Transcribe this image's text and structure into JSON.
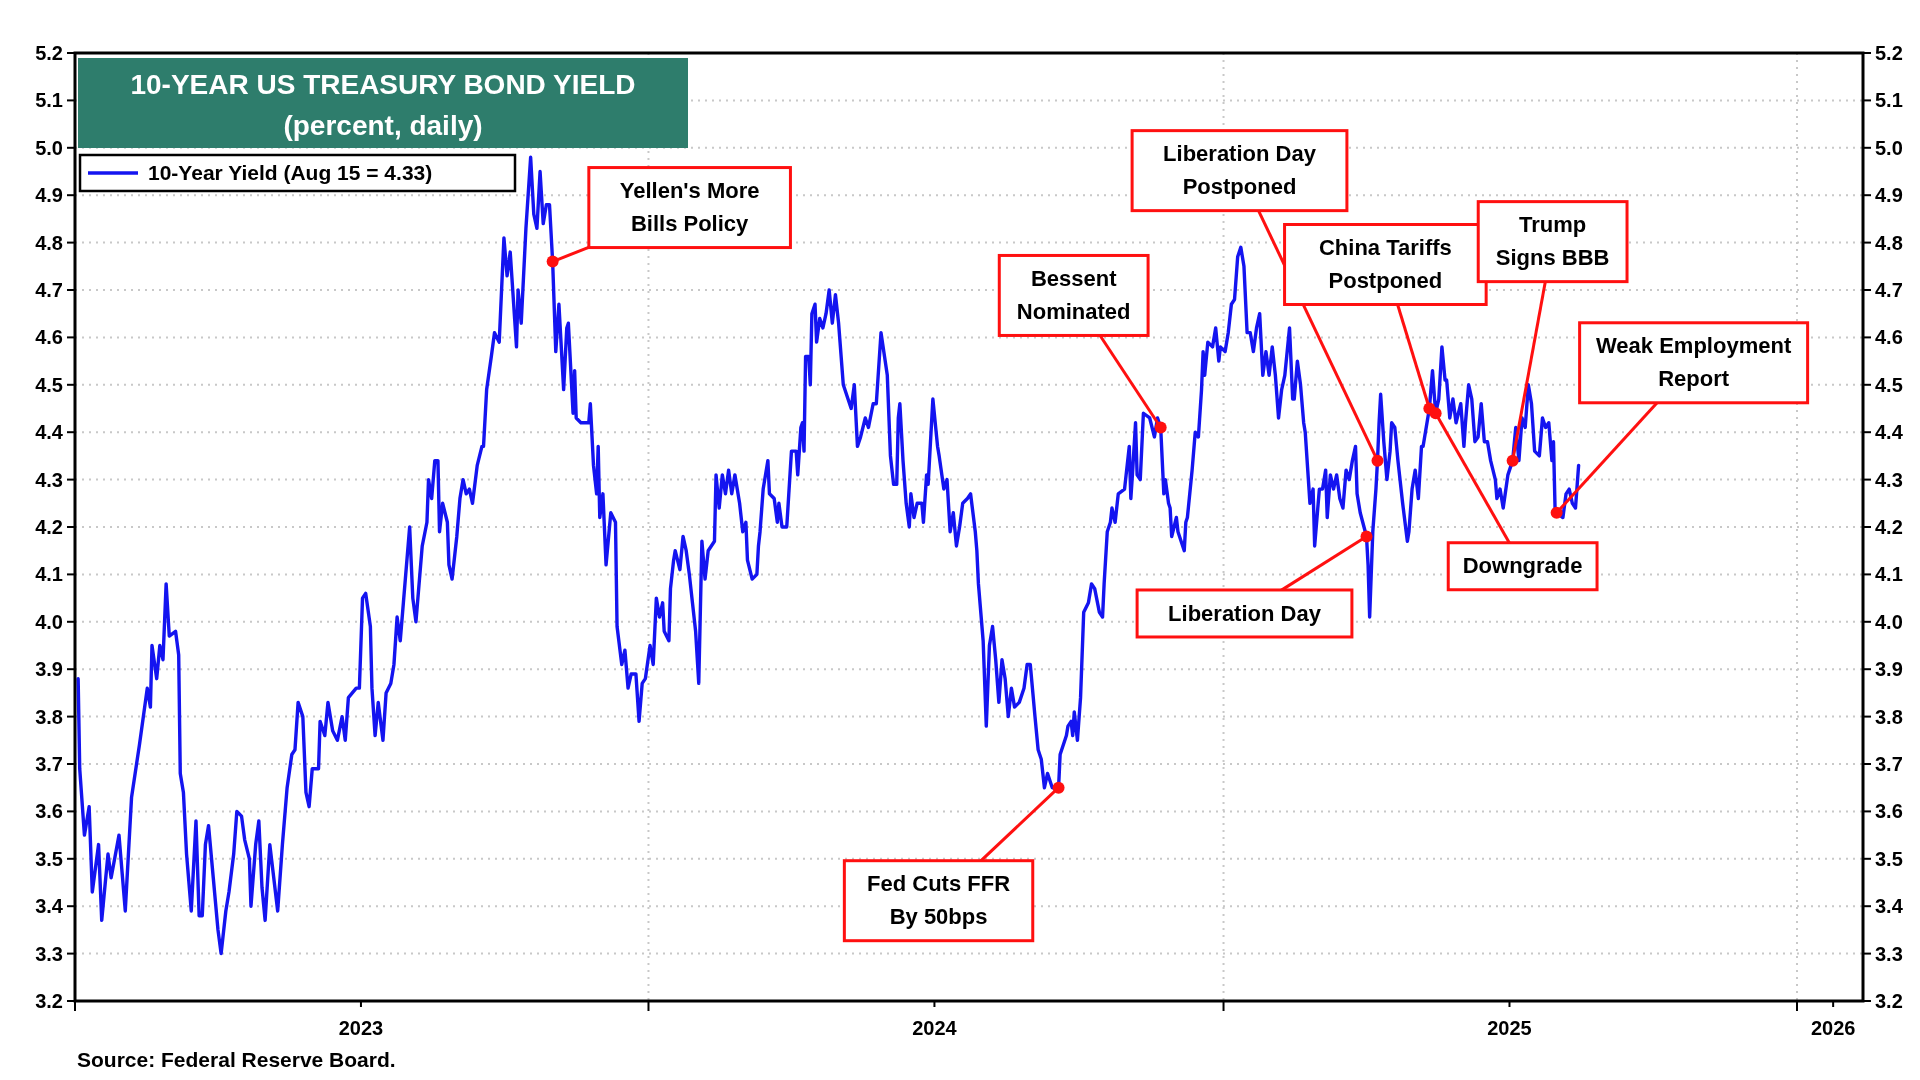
{
  "chart_data": {
    "type": "line",
    "title": "10-YEAR US TREASURY BOND YIELD",
    "subtitle": "(percent, daily)",
    "xlim": [
      "2023-01-01",
      "2026-02-12"
    ],
    "xticks": [
      {
        "value": "2023-01-01",
        "label": null
      },
      {
        "value": "2023-07-02",
        "label": "2023"
      },
      {
        "value": "2024-01-01",
        "label": null
      },
      {
        "value": "2024-07-01",
        "label": "2024"
      },
      {
        "value": "2025-01-01",
        "label": null
      },
      {
        "value": "2025-07-02",
        "label": "2025"
      },
      {
        "value": "2026-01-01",
        "label": null
      },
      {
        "value": "2026-01-24",
        "label": "2026"
      }
    ],
    "ylim": [
      3.2,
      5.2
    ],
    "yticks": [
      3.2,
      3.3,
      3.4,
      3.5,
      3.6,
      3.7,
      3.8,
      3.9,
      {
        "value": 4,
        "label": "4.0"
      },
      4.1,
      4.2,
      4.3,
      4.4,
      4.5,
      4.6,
      4.7,
      4.8,
      4.9,
      {
        "value": 5,
        "label": "5.0"
      },
      5.1,
      5.2
    ],
    "y2lim": [
      3.2,
      5.2
    ],
    "y2ticks": [
      3.2,
      3.3,
      3.4,
      3.5,
      3.6,
      3.7,
      3.8,
      3.9,
      {
        "value": 4,
        "label": "4.0"
      },
      4.1,
      4.2,
      4.3,
      4.4,
      4.5,
      4.6,
      4.7,
      4.8,
      4.9,
      {
        "value": 5,
        "label": "5.0"
      },
      5.1,
      5.2
    ],
    "grid": true,
    "legend": "top left",
    "marker": "none",
    "line_style": "solid",
    "x": [
      "2023-01-03",
      "2023-01-04",
      "2023-01-07",
      "2023-01-10",
      "2023-01-12",
      "2023-01-16",
      "2023-01-18",
      "2023-01-22",
      "2023-01-24",
      "2023-01-29",
      "2023-02-02",
      "2023-02-06",
      "2023-02-11",
      "2023-02-16",
      "2023-02-18",
      "2023-02-19",
      "2023-02-22",
      "2023-02-24",
      "2023-02-26",
      "2023-02-28",
      "2023-03-02",
      "2023-03-06",
      "2023-03-08",
      "2023-03-09",
      "2023-03-11",
      "2023-03-13",
      "2023-03-16",
      "2023-03-19",
      "2023-03-21",
      "2023-03-23",
      "2023-03-25",
      "2023-03-27",
      "2023-03-30",
      "2023-04-02",
      "2023-04-04",
      "2023-04-07",
      "2023-04-09",
      "2023-04-12",
      "2023-04-14",
      "2023-04-17",
      "2023-04-19",
      "2023-04-22",
      "2023-04-23",
      "2023-04-26",
      "2023-04-28",
      "2023-04-30",
      "2023-05-02",
      "2023-05-05",
      "2023-05-10",
      "2023-05-13",
      "2023-05-16",
      "2023-05-19",
      "2023-05-21",
      "2023-05-23",
      "2023-05-26",
      "2023-05-28",
      "2023-05-30",
      "2023-06-01",
      "2023-06-05",
      "2023-06-06",
      "2023-06-09",
      "2023-06-11",
      "2023-06-14",
      "2023-06-17",
      "2023-06-20",
      "2023-06-22",
      "2023-06-24",
      "2023-06-29",
      "2023-07-01",
      "2023-07-03",
      "2023-07-05",
      "2023-07-08",
      "2023-07-09",
      "2023-07-11",
      "2023-07-13",
      "2023-07-16",
      "2023-07-18",
      "2023-07-21",
      "2023-07-23",
      "2023-07-25",
      "2023-07-27",
      "2023-07-29",
      "2023-08-02",
      "2023-08-04",
      "2023-08-06",
      "2023-08-10",
      "2023-08-13",
      "2023-08-14",
      "2023-08-16",
      "2023-08-18",
      "2023-08-20",
      "2023-08-21",
      "2023-08-23",
      "2023-08-26",
      "2023-08-27",
      "2023-08-29",
      "2023-09-01",
      "2023-09-03",
      "2023-09-05",
      "2023-09-07",
      "2023-09-09",
      "2023-09-11",
      "2023-09-14",
      "2023-09-17",
      "2023-09-18",
      "2023-09-20",
      "2023-09-23",
      "2023-09-25",
      "2023-09-28",
      "2023-10-01",
      "2023-10-03",
      "2023-10-05",
      "2023-10-09",
      "2023-10-10",
      "2023-10-12",
      "2023-10-15",
      "2023-10-18",
      "2023-10-20",
      "2023-10-22",
      "2023-10-24",
      "2023-10-26",
      "2023-10-28",
      "2023-10-30",
      "2023-11-01",
      "2023-11-03",
      "2023-11-05",
      "2023-11-08",
      "2023-11-10",
      "2023-11-11",
      "2023-11-14",
      "2023-11-15",
      "2023-11-16",
      "2023-11-19",
      "2023-11-24",
      "2023-11-25",
      "2023-11-27",
      "2023-11-29",
      "2023-11-30",
      "2023-12-01",
      "2023-12-03",
      "2023-12-05",
      "2023-12-08",
      "2023-12-11",
      "2023-12-12",
      "2023-12-15",
      "2023-12-17",
      "2023-12-19",
      "2023-12-21",
      "2023-12-24",
      "2023-12-26",
      "2023-12-28",
      "2023-12-30",
      "2024-01-02",
      "2024-01-04",
      "2024-01-06",
      "2024-01-08",
      "2024-01-10",
      "2024-01-11",
      "2024-01-14",
      "2024-01-15",
      "2024-01-17",
      "2024-01-18",
      "2024-01-21",
      "2024-01-23",
      "2024-01-25",
      "2024-01-27",
      "2024-01-29",
      "2024-01-31",
      "2024-02-02",
      "2024-02-04",
      "2024-02-06",
      "2024-02-08",
      "2024-02-12",
      "2024-02-13",
      "2024-02-15",
      "2024-02-17",
      "2024-02-19",
      "2024-02-21",
      "2024-02-23",
      "2024-02-25",
      "2024-02-28",
      "2024-03-01",
      "2024-03-03",
      "2024-03-04",
      "2024-03-07",
      "2024-03-10",
      "2024-03-11",
      "2024-03-12",
      "2024-03-14",
      "2024-03-17",
      "2024-03-18",
      "2024-03-21",
      "2024-03-23",
      "2024-03-24",
      "2024-03-26",
      "2024-03-29",
      "2024-04-01",
      "2024-04-04",
      "2024-04-05",
      "2024-04-07",
      "2024-04-08",
      "2024-04-09",
      "2024-04-10",
      "2024-04-12",
      "2024-04-13",
      "2024-04-14",
      "2024-04-16",
      "2024-04-17",
      "2024-04-19",
      "2024-04-21",
      "2024-04-23",
      "2024-04-25",
      "2024-04-27",
      "2024-04-29",
      "2024-05-01",
      "2024-05-04",
      "2024-05-07",
      "2024-05-09",
      "2024-05-11",
      "2024-05-13",
      "2024-05-15",
      "2024-05-18",
      "2024-05-20",
      "2024-05-23",
      "2024-05-25",
      "2024-05-28",
      "2024-06-01",
      "2024-06-03",
      "2024-06-05",
      "2024-06-07",
      "2024-06-08",
      "2024-06-09",
      "2024-06-11",
      "2024-06-13",
      "2024-06-15",
      "2024-06-16",
      "2024-06-18",
      "2024-06-20",
      "2024-06-23",
      "2024-06-24",
      "2024-06-26",
      "2024-06-27",
      "2024-06-30",
      "2024-07-03",
      "2024-07-04",
      "2024-07-07",
      "2024-07-09",
      "2024-07-11",
      "2024-07-13",
      "2024-07-15",
      "2024-07-17",
      "2024-07-19",
      "2024-07-22",
      "2024-07-24",
      "2024-07-27",
      "2024-07-28",
      "2024-07-29",
      "2024-08-01",
      "2024-08-03",
      "2024-08-05",
      "2024-08-07",
      "2024-08-09",
      "2024-08-11",
      "2024-08-13",
      "2024-08-15",
      "2024-08-17",
      "2024-08-19",
      "2024-08-21",
      "2024-08-24",
      "2024-08-27",
      "2024-08-29",
      "2024-08-31",
      "2024-09-03",
      "2024-09-05",
      "2024-09-07",
      "2024-09-09",
      "2024-09-11",
      "2024-09-14",
      "2024-09-18",
      "2024-09-19",
      "2024-09-21",
      "2024-09-23",
      "2024-09-24",
      "2024-09-26",
      "2024-09-27",
      "2024-09-28",
      "2024-09-30",
      "2024-10-02",
      "2024-10-04",
      "2024-10-07",
      "2024-10-09",
      "2024-10-11",
      "2024-10-14",
      "2024-10-16",
      "2024-10-17",
      "2024-10-19",
      "2024-10-21",
      "2024-10-22",
      "2024-10-24",
      "2024-10-26",
      "2024-10-30",
      "2024-11-02",
      "2024-11-03",
      "2024-11-04",
      "2024-11-06",
      "2024-11-07",
      "2024-11-09",
      "2024-11-11",
      "2024-11-15",
      "2024-11-18",
      "2024-11-20",
      "2024-11-22",
      "2024-11-24",
      "2024-11-25",
      "2024-11-27",
      "2024-11-28",
      "2024-11-29",
      "2024-12-02",
      "2024-12-03",
      "2024-12-07",
      "2024-12-08",
      "2024-12-09",
      "2024-12-12",
      "2024-12-14",
      "2024-12-16",
      "2024-12-18",
      "2024-12-19",
      "2024-12-20",
      "2024-12-22",
      "2024-12-25",
      "2024-12-27",
      "2024-12-29",
      "2024-12-30",
      "2025-01-02",
      "2025-01-04",
      "2025-01-06",
      "2025-01-08",
      "2025-01-10",
      "2025-01-12",
      "2025-01-14",
      "2025-01-16",
      "2025-01-18",
      "2025-01-20",
      "2025-01-22",
      "2025-01-24",
      "2025-01-26",
      "2025-01-28",
      "2025-01-30",
      "2025-02-01",
      "2025-02-03",
      "2025-02-05",
      "2025-02-07",
      "2025-02-09",
      "2025-02-12",
      "2025-02-14",
      "2025-02-15",
      "2025-02-17",
      "2025-02-19",
      "2025-02-21",
      "2025-02-22",
      "2025-02-24",
      "2025-02-25",
      "2025-02-27",
      "2025-02-28",
      "2025-03-03",
      "2025-03-05",
      "2025-03-07",
      "2025-03-08",
      "2025-03-10",
      "2025-03-12",
      "2025-03-14",
      "2025-03-16",
      "2025-03-18",
      "2025-03-20",
      "2025-03-22",
      "2025-03-24",
      "2025-03-26",
      "2025-03-27",
      "2025-03-29",
      "2025-04-02",
      "2025-04-03",
      "2025-04-04",
      "2025-04-06",
      "2025-04-08",
      "2025-04-09",
      "2025-04-10",
      "2025-04-11",
      "2025-04-13",
      "2025-04-15",
      "2025-04-17",
      "2025-04-18",
      "2025-04-20",
      "2025-04-22",
      "2025-04-25",
      "2025-04-28",
      "2025-04-29",
      "2025-05-01",
      "2025-05-03",
      "2025-05-05",
      "2025-05-07",
      "2025-05-08",
      "2025-05-12",
      "2025-05-14",
      "2025-05-16",
      "2025-05-18",
      "2025-05-20",
      "2025-05-22",
      "2025-05-23",
      "2025-05-25",
      "2025-05-27",
      "2025-05-29",
      "2025-06-01",
      "2025-06-03",
      "2025-06-04",
      "2025-06-06",
      "2025-06-08",
      "2025-06-10",
      "2025-06-12",
      "2025-06-14",
      "2025-06-16",
      "2025-06-18",
      "2025-06-20",
      "2025-06-23",
      "2025-06-24",
      "2025-06-26",
      "2025-06-28",
      "2025-07-01",
      "2025-07-04",
      "2025-07-06",
      "2025-07-08",
      "2025-07-10",
      "2025-07-12",
      "2025-07-14",
      "2025-07-16",
      "2025-07-18",
      "2025-07-21",
      "2025-07-23",
      "2025-07-25",
      "2025-07-27",
      "2025-07-29",
      "2025-07-30",
      "2025-07-31",
      "2025-08-01",
      "2025-08-05",
      "2025-08-07",
      "2025-08-09",
      "2025-08-11",
      "2025-08-13",
      "2025-08-15"
    ],
    "series": [
      {
        "name": "10-Year Yield (Aug 15 = 4.33)",
        "color": "#1414f0",
        "values": [
          3.88,
          3.69,
          3.55,
          3.61,
          3.43,
          3.53,
          3.37,
          3.51,
          3.46,
          3.55,
          3.39,
          3.63,
          3.74,
          3.86,
          3.82,
          3.95,
          3.88,
          3.95,
          3.92,
          4.08,
          3.97,
          3.98,
          3.93,
          3.68,
          3.64,
          3.51,
          3.39,
          3.58,
          3.38,
          3.38,
          3.53,
          3.57,
          3.46,
          3.35,
          3.3,
          3.39,
          3.43,
          3.51,
          3.6,
          3.59,
          3.54,
          3.5,
          3.4,
          3.53,
          3.58,
          3.44,
          3.37,
          3.53,
          3.39,
          3.53,
          3.65,
          3.72,
          3.73,
          3.83,
          3.8,
          3.64,
          3.61,
          3.69,
          3.69,
          3.79,
          3.76,
          3.83,
          3.77,
          3.75,
          3.8,
          3.75,
          3.84,
          3.86,
          3.86,
          4.05,
          4.06,
          3.99,
          3.86,
          3.76,
          3.83,
          3.75,
          3.85,
          3.87,
          3.91,
          4.01,
          3.96,
          4.04,
          4.2,
          4.05,
          4.0,
          4.16,
          4.21,
          4.3,
          4.26,
          4.34,
          4.34,
          4.19,
          4.25,
          4.21,
          4.12,
          4.09,
          4.18,
          4.26,
          4.3,
          4.27,
          4.28,
          4.25,
          4.33,
          4.37,
          4.37,
          4.49,
          4.56,
          4.61,
          4.59,
          4.81,
          4.73,
          4.78,
          4.58,
          4.7,
          4.63,
          4.83,
          4.98,
          4.86,
          4.83,
          4.95,
          4.84,
          4.88,
          4.88,
          4.76,
          4.57,
          4.67,
          4.49,
          4.62,
          4.63,
          4.44,
          4.53,
          4.43,
          4.42,
          4.42,
          4.46,
          4.33,
          4.27,
          4.37,
          4.22,
          4.27,
          4.12,
          4.23,
          4.21,
          3.99,
          3.91,
          3.94,
          3.86,
          3.89,
          3.89,
          3.79,
          3.87,
          3.88,
          3.95,
          3.91,
          4.05,
          4.01,
          4.04,
          3.98,
          3.96,
          4.07,
          4.13,
          4.15,
          4.11,
          4.18,
          4.15,
          4.1,
          4.04,
          3.98,
          3.87,
          4.17,
          4.09,
          4.15,
          4.17,
          4.31,
          4.24,
          4.31,
          4.27,
          4.32,
          4.27,
          4.31,
          4.25,
          4.19,
          4.21,
          4.13,
          4.09,
          4.1,
          4.16,
          4.19,
          4.28,
          4.34,
          4.27,
          4.26,
          4.21,
          4.25,
          4.2,
          4.2,
          4.36,
          4.36,
          4.31,
          4.41,
          4.42,
          4.36,
          4.56,
          4.56,
          4.5,
          4.65,
          4.67,
          4.59,
          4.64,
          4.62,
          4.65,
          4.7,
          4.63,
          4.69,
          4.63,
          4.5,
          4.47,
          4.45,
          4.5,
          4.37,
          4.39,
          4.43,
          4.41,
          4.46,
          4.46,
          4.61,
          4.52,
          4.35,
          4.29,
          4.29,
          4.43,
          4.46,
          4.34,
          4.25,
          4.2,
          4.27,
          4.22,
          4.25,
          4.25,
          4.21,
          4.31,
          4.29,
          4.47,
          4.37,
          4.35,
          4.28,
          4.3,
          4.19,
          4.23,
          4.16,
          4.2,
          4.25,
          4.26,
          4.27,
          4.19,
          4.15,
          4.08,
          3.96,
          3.78,
          3.95,
          3.99,
          3.92,
          3.83,
          3.92,
          3.88,
          3.8,
          3.86,
          3.82,
          3.83,
          3.86,
          3.91,
          3.91,
          3.8,
          3.73,
          3.71,
          3.65,
          3.68,
          3.65,
          3.65,
          3.72,
          3.74,
          3.76,
          3.78,
          3.79,
          3.76,
          3.81,
          3.75,
          3.84,
          4.02,
          4.04,
          4.08,
          4.07,
          4.02,
          4.01,
          4.08,
          4.19,
          4.21,
          4.24,
          4.21,
          4.27,
          4.28,
          4.37,
          4.26,
          4.31,
          4.42,
          4.31,
          4.3,
          4.44,
          4.43,
          4.39,
          4.43,
          4.41,
          4.27,
          4.3,
          4.25,
          4.24,
          4.18,
          4.22,
          4.19,
          4.15,
          4.21,
          4.22,
          4.32,
          4.4,
          4.39,
          4.49,
          4.57,
          4.52,
          4.59,
          4.58,
          4.62,
          4.55,
          4.58,
          4.57,
          4.61,
          4.67,
          4.68,
          4.77,
          4.79,
          4.75,
          4.61,
          4.61,
          4.57,
          4.62,
          4.65,
          4.52,
          4.57,
          4.52,
          4.58,
          4.52,
          4.43,
          4.49,
          4.52,
          4.62,
          4.47,
          4.47,
          4.55,
          4.5,
          4.42,
          4.4,
          4.3,
          4.25,
          4.28,
          4.16,
          4.28,
          4.28,
          4.32,
          4.22,
          4.31,
          4.28,
          4.31,
          4.26,
          4.24,
          4.32,
          4.3,
          4.34,
          4.37,
          4.27,
          4.23,
          4.18,
          4.12,
          4.01,
          4.19,
          4.28,
          4.34,
          4.42,
          4.48,
          4.38,
          4.3,
          4.36,
          4.42,
          4.41,
          4.34,
          4.25,
          4.17,
          4.19,
          4.28,
          4.32,
          4.26,
          4.37,
          4.37,
          4.45,
          4.53,
          4.44,
          4.47,
          4.58,
          4.51,
          4.51,
          4.43,
          4.47,
          4.42,
          4.46,
          4.37,
          4.42,
          4.5,
          4.47,
          4.38,
          4.39,
          4.46,
          4.38,
          4.38,
          4.34,
          4.3,
          4.26,
          4.28,
          4.24,
          4.31,
          4.34,
          4.41,
          4.34,
          4.43,
          4.41,
          4.5,
          4.46,
          4.36,
          4.35,
          4.43,
          4.41,
          4.42,
          4.34,
          4.38,
          4.24,
          4.23,
          4.22,
          4.27,
          4.28,
          4.25,
          4.24,
          4.33
        ]
      }
    ],
    "annotations": [
      {
        "text": "Yellen's More Bills Policy",
        "x": "2023-11-01",
        "y": 4.76
      },
      {
        "text": "Fed Cuts FFR By 50bps",
        "x": "2024-09-18",
        "y": 3.65
      },
      {
        "text": "Bessent Nominated",
        "x": "2024-11-22",
        "y": 4.41
      },
      {
        "text": "Liberation Day",
        "x": "2025-04-02",
        "y": 4.18
      },
      {
        "text": "Liberation Day Postponed",
        "x": "2025-04-09",
        "y": 4.34
      },
      {
        "text": "China Tariffs Postponed",
        "x": "2025-05-12",
        "y": 4.45
      },
      {
        "text": "Downgrade",
        "x": "2025-05-16",
        "y": 4.44
      },
      {
        "text": "Trump Signs BBB",
        "x": "2025-07-04",
        "y": 4.34
      },
      {
        "text": "Weak Employment Report",
        "x": "2025-08-01",
        "y": 4.23
      },
      "Source: Federal Reserve Board."
    ]
  }
}
